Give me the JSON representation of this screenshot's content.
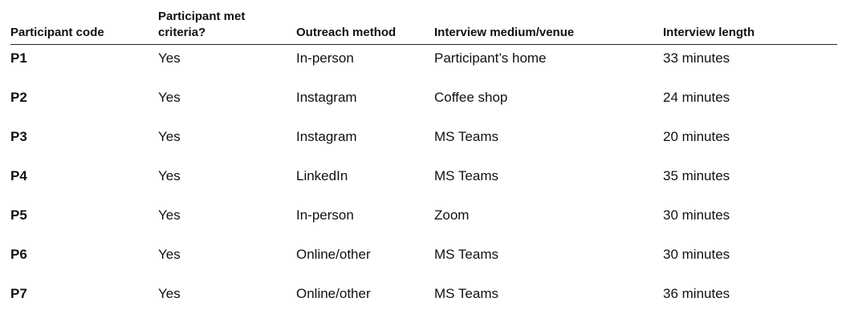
{
  "table": {
    "headers": [
      "Participant code",
      "Participant met criteria?",
      "Outreach method",
      "Interview medium/venue",
      "Interview length"
    ],
    "rows": [
      {
        "code": "P1",
        "met": "Yes",
        "outreach": "In-person",
        "venue": "Participant’s home",
        "length": "33 minutes"
      },
      {
        "code": "P2",
        "met": "Yes",
        "outreach": "Instagram",
        "venue": "Coffee shop",
        "length": "24 minutes"
      },
      {
        "code": "P3",
        "met": "Yes",
        "outreach": "Instagram",
        "venue": "MS Teams",
        "length": "20 minutes"
      },
      {
        "code": "P4",
        "met": "Yes",
        "outreach": "LinkedIn",
        "venue": "MS Teams",
        "length": "35 minutes"
      },
      {
        "code": "P5",
        "met": "Yes",
        "outreach": "In-person",
        "venue": "Zoom",
        "length": "30 minutes"
      },
      {
        "code": "P6",
        "met": "Yes",
        "outreach": "Online/other",
        "venue": "MS Teams",
        "length": "30 minutes"
      },
      {
        "code": "P7",
        "met": "Yes",
        "outreach": "Online/other",
        "venue": "MS Teams",
        "length": "36 minutes"
      }
    ]
  }
}
